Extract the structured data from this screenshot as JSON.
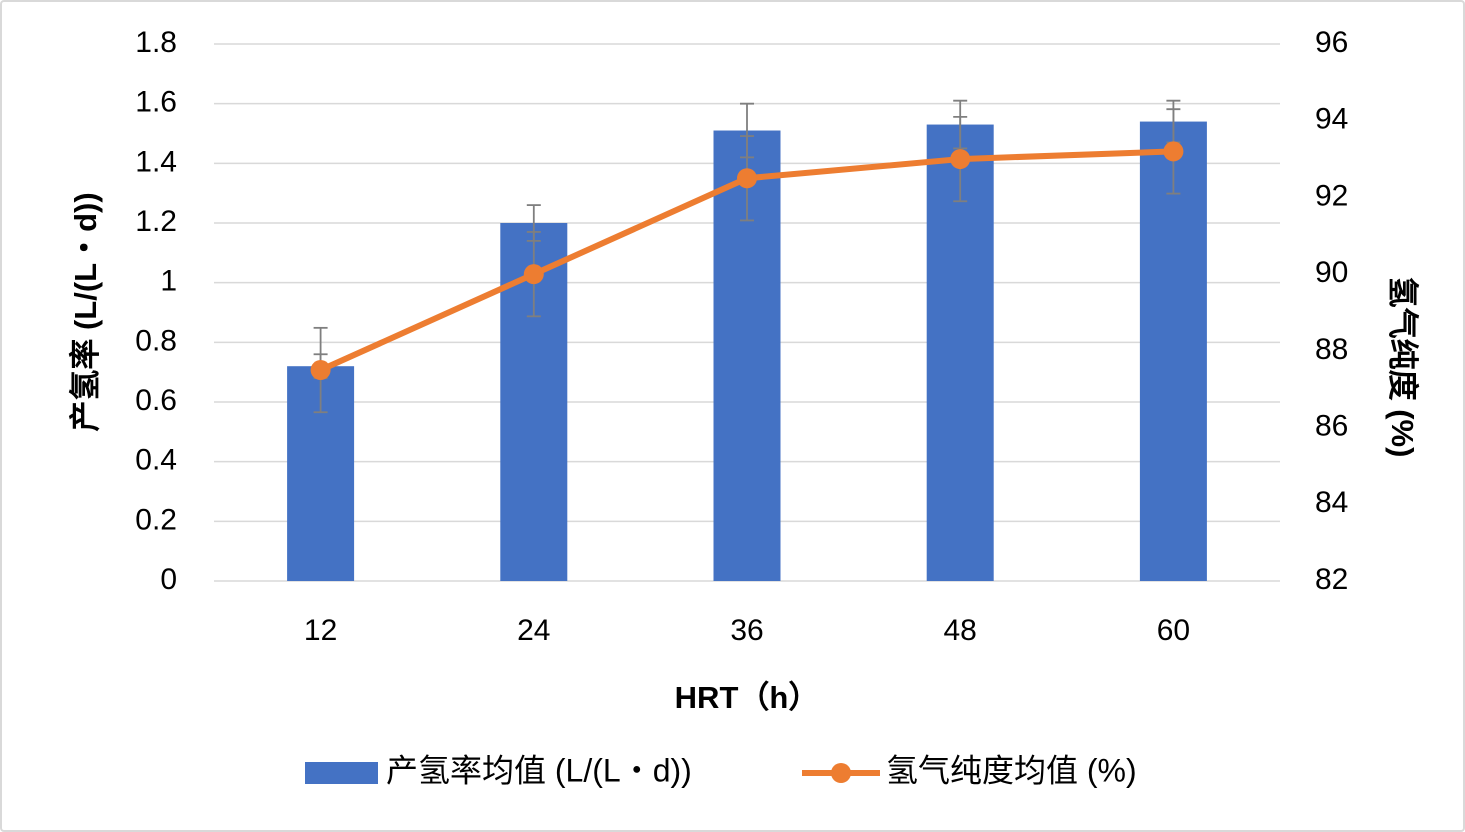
{
  "chart_data": {
    "type": "bar+line",
    "categories": [
      "12",
      "24",
      "36",
      "48",
      "60"
    ],
    "xlabel": "HRT（h）",
    "ylabel": "产氢率 (L/(L・d))",
    "y2label": "氢气纯度 (%)",
    "ylim": [
      0,
      1.8
    ],
    "y2lim": [
      82,
      96
    ],
    "y_ticks": [
      "0",
      "0.2",
      "0.4",
      "0.6",
      "0.8",
      "1",
      "1.2",
      "1.4",
      "1.6",
      "1.8"
    ],
    "y2_ticks": [
      "82",
      "84",
      "86",
      "88",
      "90",
      "92",
      "94",
      "96"
    ],
    "grid": true,
    "legend_position": "bottom",
    "series": [
      {
        "name": "产氢率均值 (L/(L・d))",
        "type": "bar",
        "axis": "left",
        "color": "#4472C4",
        "values": [
          0.72,
          1.2,
          1.51,
          1.53,
          1.54
        ],
        "errors": [
          0.04,
          0.06,
          0.09,
          0.08,
          0.07
        ]
      },
      {
        "name": "氢气纯度均值 (%)",
        "type": "line",
        "axis": "right",
        "color": "#ED7D31",
        "values": [
          87.5,
          90,
          92.5,
          93,
          93.2
        ],
        "errors": [
          1.1,
          1.1,
          1.1,
          1.1,
          1.1
        ]
      }
    ],
    "error_bar_color": "#7F7F7F",
    "grid_color": "#D9D9D9"
  }
}
